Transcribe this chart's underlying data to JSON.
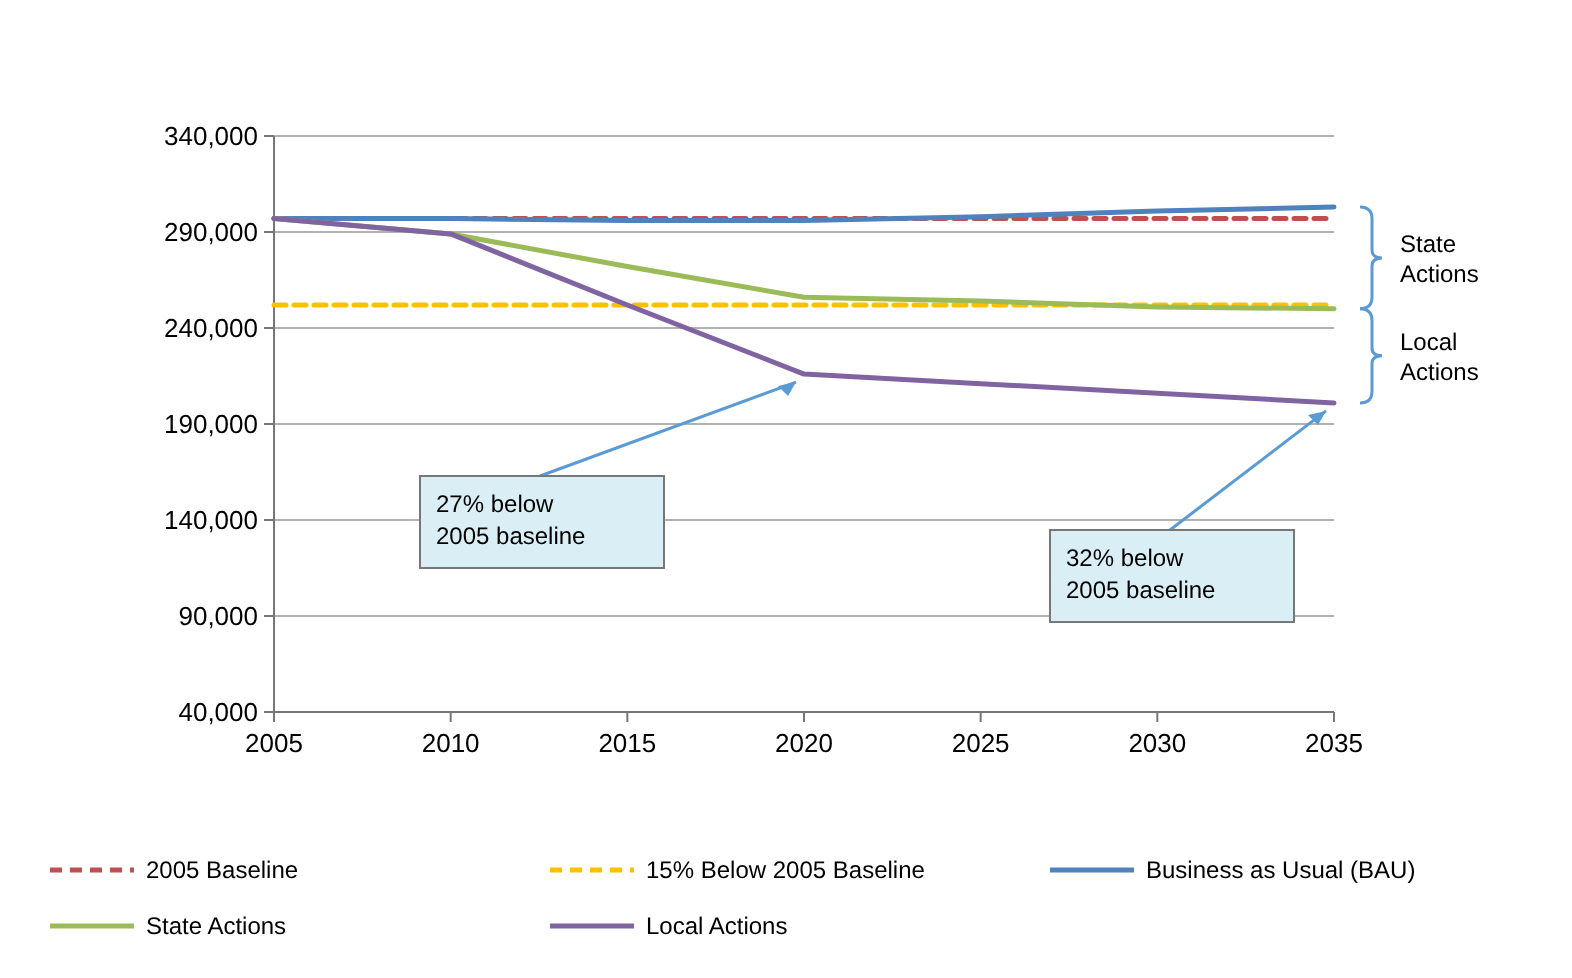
{
  "chart_data": {
    "type": "line",
    "x": [
      2005,
      2010,
      2015,
      2020,
      2025,
      2030,
      2035
    ],
    "series": [
      {
        "name": "2005 Baseline",
        "color": "#c0504d",
        "line_style": "dashed",
        "values": [
          297000,
          297000,
          297000,
          297000,
          297000,
          297000,
          297000
        ]
      },
      {
        "name": "15% Below 2005 Baseline",
        "color": "#ffc000",
        "line_style": "dashed",
        "values": [
          252000,
          252000,
          252000,
          252000,
          252000,
          252000,
          252000
        ]
      },
      {
        "name": "Business as Usual (BAU)",
        "color": "#4f81bd",
        "line_style": "solid",
        "values": [
          297000,
          297000,
          296000,
          296000,
          298000,
          301000,
          303000
        ]
      },
      {
        "name": "State Actions",
        "color": "#9bbb59",
        "line_style": "solid",
        "values": [
          297000,
          289000,
          272000,
          256000,
          254000,
          251000,
          250000
        ]
      },
      {
        "name": "Local Actions",
        "color": "#8064a2",
        "line_style": "solid",
        "values": [
          297000,
          289000,
          252000,
          216000,
          211000,
          206000,
          201000
        ]
      }
    ],
    "xlim": [
      2005,
      2035
    ],
    "xticks": [
      2005,
      2010,
      2015,
      2020,
      2025,
      2030,
      2035
    ],
    "ylim": [
      40000,
      340000
    ],
    "yticks": [
      {
        "value": 40000,
        "label": "40,000"
      },
      {
        "value": 90000,
        "label": "90,000"
      },
      {
        "value": 140000,
        "label": "140,000"
      },
      {
        "value": 190000,
        "label": "190,000"
      },
      {
        "value": 240000,
        "label": "240,000"
      },
      {
        "value": 290000,
        "label": "290,000"
      },
      {
        "value": 340000,
        "label": "340,000"
      }
    ],
    "grid": "y",
    "legend": "bottom",
    "marker": "none",
    "annotations": [
      {
        "text": "27% below 2005 baseline",
        "x": 2020,
        "y": 216000
      },
      {
        "text": "32% below 2005 baseline",
        "x": 2035,
        "y": 201000
      },
      "State Actions",
      "Local Actions"
    ]
  }
}
